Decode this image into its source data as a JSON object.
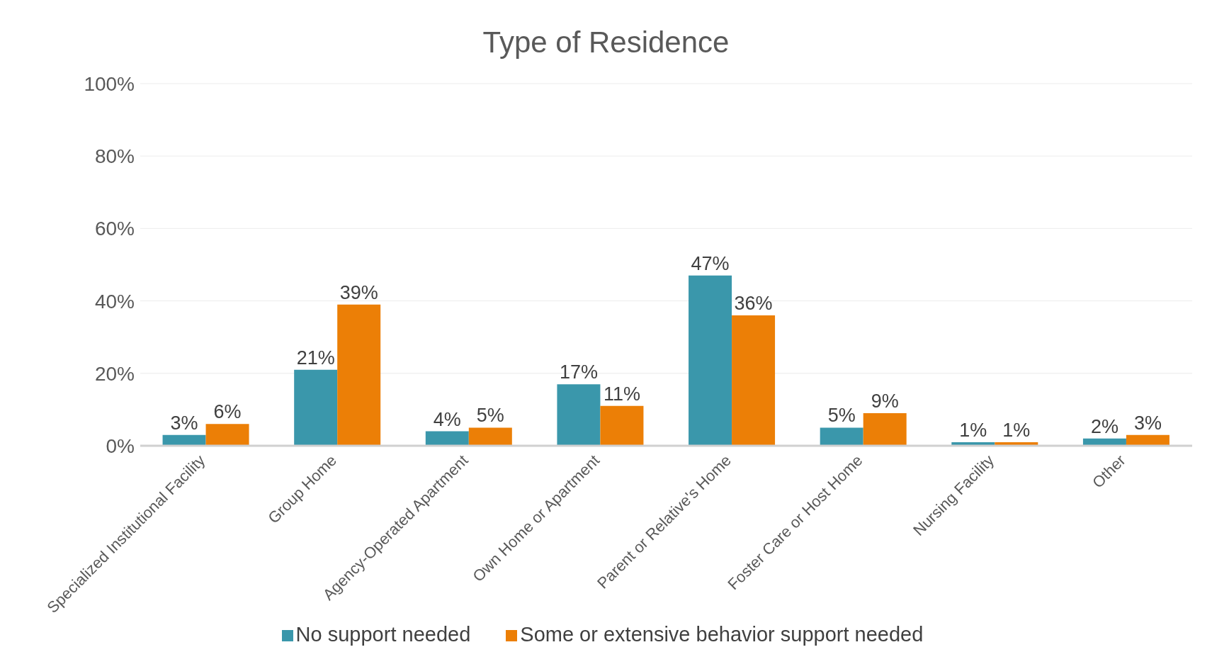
{
  "chart_data": {
    "type": "bar",
    "title": "Type of Residence",
    "categories": [
      "Specialized Institutional Facility",
      "Group Home",
      "Agency-Operated Apartment",
      "Own Home or Apartment",
      "Parent or Relative's Home",
      "Foster Care or Host Home",
      "Nursing Facility",
      "Other"
    ],
    "series": [
      {
        "name": "No support needed",
        "color": "#3a97ab",
        "values": [
          3,
          21,
          4,
          17,
          47,
          5,
          1,
          2
        ],
        "value_labels": [
          "3%",
          "21%",
          "4%",
          "17%",
          "47%",
          "5%",
          "1%",
          "2%"
        ]
      },
      {
        "name": "Some or extensive behavior support needed",
        "color": "#ec7f06",
        "values": [
          6,
          39,
          5,
          11,
          36,
          9,
          1,
          3
        ],
        "value_labels": [
          "6%",
          "39%",
          "5%",
          "11%",
          "36%",
          "9%",
          "1%",
          "3%"
        ]
      }
    ],
    "ylim": [
      0,
      100
    ],
    "yticks": [
      {
        "value": 0,
        "label": "0%"
      },
      {
        "value": 20,
        "label": "20%"
      },
      {
        "value": 40,
        "label": "40%"
      },
      {
        "value": 60,
        "label": "60%"
      },
      {
        "value": 80,
        "label": "80%"
      },
      {
        "value": 100,
        "label": "100%"
      }
    ],
    "grid": "y",
    "legend": "bottom"
  }
}
